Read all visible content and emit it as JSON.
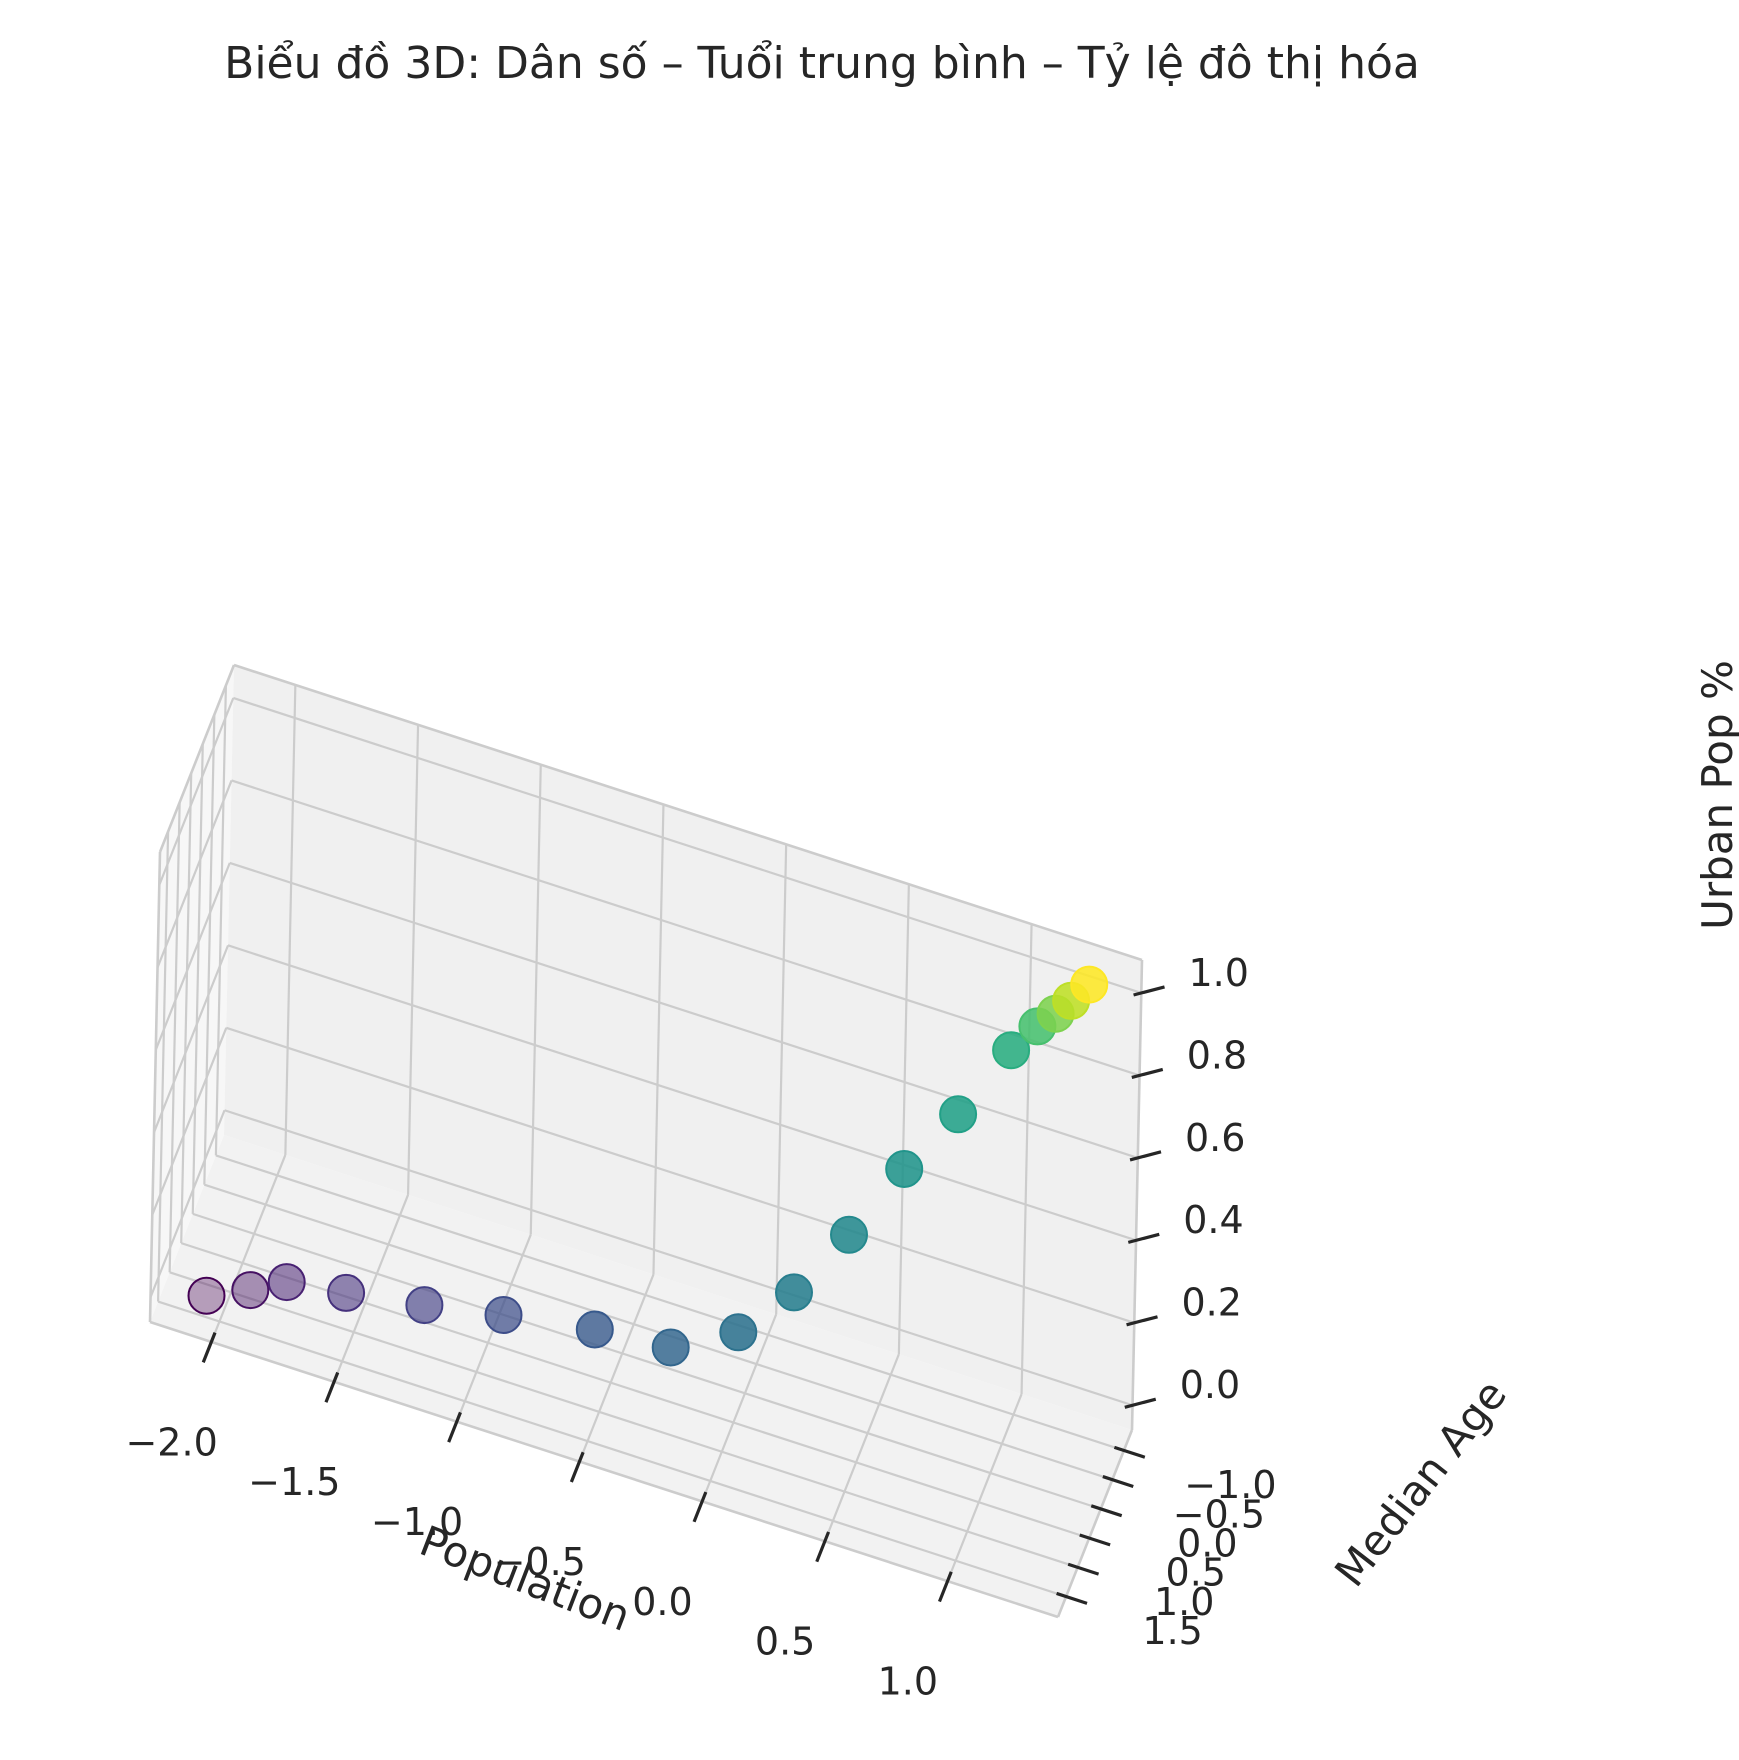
{
  "chart_data": {
    "type": "scatter",
    "title": "Biểu đồ 3D: Dân số – Tuổi trung bình – Tỷ lệ đô thị hóa",
    "xlabel": "Population",
    "ylabel": "Median Age",
    "zlabel": "Urban Pop %",
    "xlim": [
      -2.25,
      1.45
    ],
    "ylim": [
      -1.35,
      1.85
    ],
    "zlim": [
      -0.06,
      1.08
    ],
    "x_ticks": [
      "−2.0",
      "−1.5",
      "−1.0",
      "−0.5",
      "0.0",
      "0.5",
      "1.0"
    ],
    "y_ticks": [
      "−1.0",
      "−0.5",
      "0.0",
      "0.5",
      "1.0",
      "1.5"
    ],
    "z_ticks": [
      "0.0",
      "0.2",
      "0.4",
      "0.6",
      "0.8",
      "1.0"
    ],
    "grid": true,
    "colormap": "viridis",
    "points": [
      {
        "x": -2.05,
        "y": 1.55,
        "z": 0.0
      },
      {
        "x": -1.9,
        "y": 1.25,
        "z": 0.0
      },
      {
        "x": -1.78,
        "y": 0.95,
        "z": 0.0
      },
      {
        "x": -1.55,
        "y": 0.82,
        "z": 0.0
      },
      {
        "x": -1.25,
        "y": 0.62,
        "z": 0.0
      },
      {
        "x": -0.95,
        "y": 0.38,
        "z": 0.0
      },
      {
        "x": -0.6,
        "y": 0.15,
        "z": 0.0
      },
      {
        "x": -0.3,
        "y": 0.05,
        "z": 0.0
      },
      {
        "x": -0.05,
        "y": -0.2,
        "z": 0.05
      },
      {
        "x": 0.15,
        "y": -0.45,
        "z": 0.15
      },
      {
        "x": 0.35,
        "y": -0.65,
        "z": 0.3
      },
      {
        "x": 0.55,
        "y": -0.85,
        "z": 0.47
      },
      {
        "x": 0.75,
        "y": -1.0,
        "z": 0.62
      },
      {
        "x": 0.95,
        "y": -1.1,
        "z": 0.8
      },
      {
        "x": 1.05,
        "y": -1.15,
        "z": 0.87
      },
      {
        "x": 1.12,
        "y": -1.18,
        "z": 0.91
      },
      {
        "x": 1.18,
        "y": -1.2,
        "z": 0.95
      },
      {
        "x": 1.25,
        "y": -1.22,
        "z": 1.0
      }
    ]
  }
}
